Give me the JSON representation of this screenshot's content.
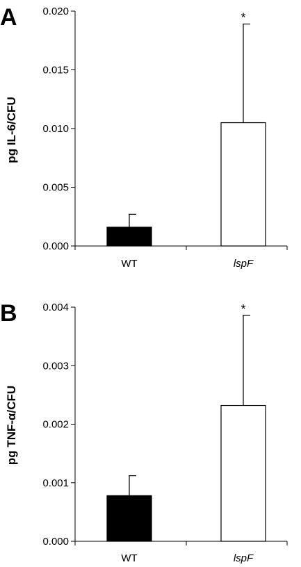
{
  "chart_data": [
    {
      "type": "bar",
      "panel_label": "A",
      "ylabel": "pg IL-6/CFU",
      "categories": [
        "WT",
        "lspF"
      ],
      "category_italic": [
        false,
        true
      ],
      "values": [
        0.0016,
        0.0105
      ],
      "errors": [
        0.0011,
        0.0084
      ],
      "bar_colors": [
        "#000000",
        "#ffffff"
      ],
      "significance": [
        "",
        "*"
      ],
      "ylim": [
        0,
        0.02
      ],
      "yticks": [
        "0.000",
        "0.005",
        "0.010",
        "0.015",
        "0.020"
      ]
    },
    {
      "type": "bar",
      "panel_label": "B",
      "ylabel": "pg TNF-α/CFU",
      "categories": [
        "WT",
        "lspF"
      ],
      "category_italic": [
        false,
        true
      ],
      "values": [
        0.00078,
        0.00232
      ],
      "errors": [
        0.00034,
        0.00154
      ],
      "bar_colors": [
        "#000000",
        "#ffffff"
      ],
      "significance": [
        "",
        "*"
      ],
      "ylim": [
        0,
        0.004
      ],
      "yticks": [
        "0.000",
        "0.001",
        "0.002",
        "0.003",
        "0.004"
      ]
    }
  ]
}
